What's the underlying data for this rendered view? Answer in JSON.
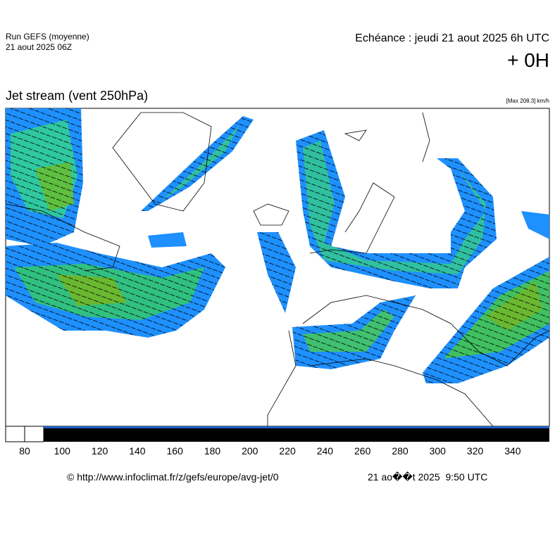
{
  "header": {
    "run": "Run GEFS (moyenne)",
    "run_date": "21 aout 2025 06Z",
    "forecast": "Echéance : jeudi 21 aout 2025 6h UTC",
    "lead": "+ 0H"
  },
  "map": {
    "title": "Jet stream (vent 250hPa)",
    "max_label": "[Max 208.3] km/h"
  },
  "colorbar": {
    "ticks": [
      80,
      100,
      120,
      140,
      160,
      180,
      200,
      220,
      240,
      260,
      280,
      300,
      320,
      340
    ]
  },
  "footer": {
    "source": "© http://www.infoclimat.fr/z/gefs/europe/avg-jet/0",
    "timestamp": "21 ao��t 2025  9:50 UTC"
  }
}
